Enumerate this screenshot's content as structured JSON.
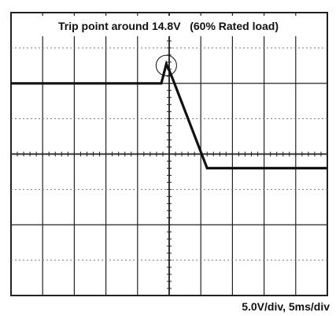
{
  "annotation": "Trip point around 14.8V   (60% Rated load)",
  "scale_label": "5.0V/div,  5ms/div",
  "chart_data": {
    "type": "line",
    "title": "Trip point around 14.8V   (60% Rated load)",
    "xlabel": "",
    "ylabel": "",
    "x_divisions": 10,
    "y_divisions": 8,
    "volts_per_div": 5.0,
    "ms_per_div": 5,
    "grid": true,
    "series": [
      {
        "x_div": [
          0,
          4.75,
          4.91,
          5.08,
          6.2,
          10
        ],
        "y_div": [
          6.0,
          6.0,
          6.55,
          6.2,
          3.6,
          3.6
        ]
      }
    ],
    "trip_marker": {
      "x_div": 4.91,
      "y_div": 6.55
    },
    "trip_point_volts": 14.8,
    "rated_load_percent": 60
  },
  "colors": {
    "trace": "#111111",
    "grid": "#222222",
    "dotted_grid": "#777777",
    "background": "#ffffff"
  }
}
